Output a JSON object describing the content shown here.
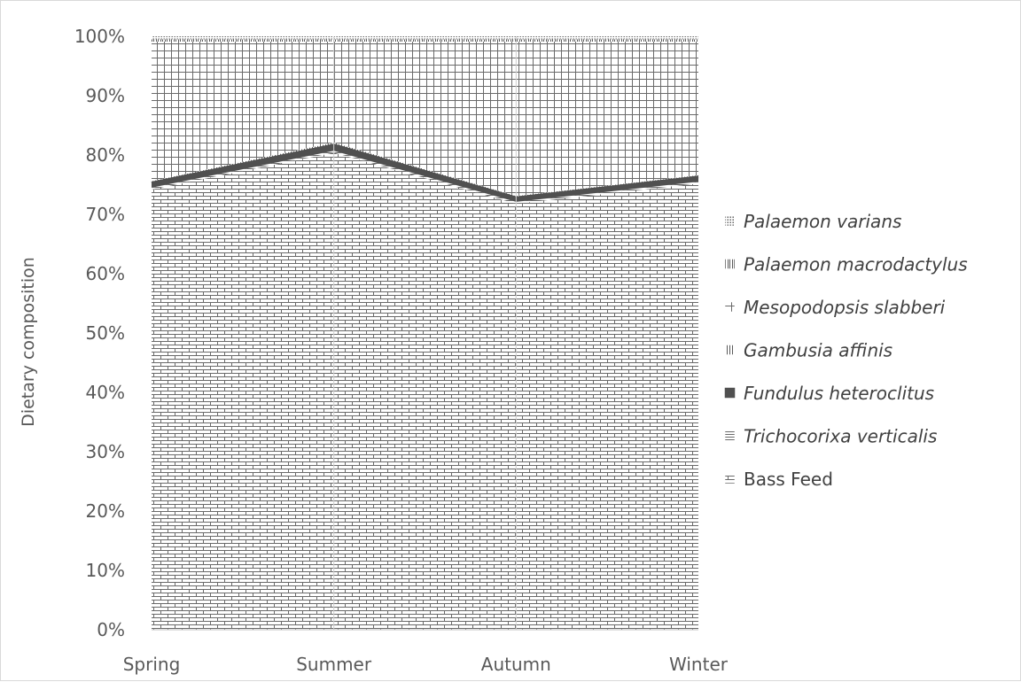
{
  "chart_data": {
    "type": "area",
    "stacked": true,
    "percent_stacked": true,
    "categories": [
      "Spring",
      "Summer",
      "Autumn",
      "Winter"
    ],
    "ylabel": "Dietary composition",
    "xlabel": "",
    "ylim": [
      0,
      100
    ],
    "y_ticks": [
      "0%",
      "10%",
      "20%",
      "30%",
      "40%",
      "50%",
      "60%",
      "70%",
      "80%",
      "90%",
      "100%"
    ],
    "legend_position": "right",
    "grid": false,
    "series": [
      {
        "name": "Bass Feed",
        "italic": false,
        "pattern": "brick",
        "values": [
          74.2,
          80.4,
          71.8,
          75.2
        ]
      },
      {
        "name": "Trichocorixa verticalis",
        "italic": true,
        "pattern": "hline",
        "values": [
          0.3,
          0.3,
          0.3,
          0.3
        ]
      },
      {
        "name": "Fundulus heteroclitus",
        "italic": true,
        "pattern": "solid",
        "values": [
          0.8,
          1.0,
          0.7,
          0.8
        ]
      },
      {
        "name": "Gambusia affinis",
        "italic": true,
        "pattern": "vline",
        "values": [
          0.3,
          0.4,
          0.3,
          0.3
        ]
      },
      {
        "name": "Mesopodopsis slabberi",
        "italic": true,
        "pattern": "grid",
        "values": [
          23.5,
          17.0,
          26.0,
          22.5
        ]
      },
      {
        "name": "Palaemon macrodactylus",
        "italic": true,
        "pattern": "dvline",
        "values": [
          0.4,
          0.4,
          0.4,
          0.4
        ]
      },
      {
        "name": "Palaemon varians",
        "italic": true,
        "pattern": "dots",
        "values": [
          0.5,
          0.5,
          0.5,
          0.5
        ]
      }
    ],
    "colors": {
      "pattern_ink": "#5a5a5a",
      "dark_band": "#505050",
      "axis": "#bfbfbf",
      "text": "#595959"
    }
  }
}
